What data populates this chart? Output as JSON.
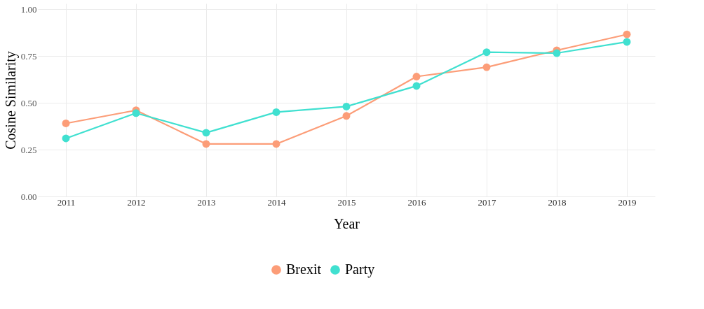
{
  "chart_data": {
    "type": "line",
    "xlabel": "Year",
    "ylabel": "Cosine Similarity",
    "categories": [
      "2011",
      "2012",
      "2013",
      "2014",
      "2015",
      "2016",
      "2017",
      "2018",
      "2019"
    ],
    "series": [
      {
        "name": "Brexit",
        "color": "#fc9d78",
        "values": [
          0.39,
          0.46,
          0.28,
          0.28,
          0.43,
          0.64,
          0.69,
          0.78,
          0.865
        ]
      },
      {
        "name": "Party",
        "color": "#40e0d0",
        "values": [
          0.31,
          0.445,
          0.34,
          0.45,
          0.48,
          0.59,
          0.77,
          0.765,
          0.825
        ]
      }
    ],
    "ylim": [
      0,
      1.03
    ],
    "yticks": [
      {
        "value": 0,
        "label": "0.00"
      },
      {
        "value": 0.25,
        "label": "0.25"
      },
      {
        "value": 0.5,
        "label": "0.50"
      },
      {
        "value": 0.75,
        "label": "0.75"
      },
      {
        "value": 1,
        "label": "1.00"
      }
    ],
    "grid": true,
    "legend": "bottom",
    "marker": "circle",
    "line_style": "solid"
  }
}
